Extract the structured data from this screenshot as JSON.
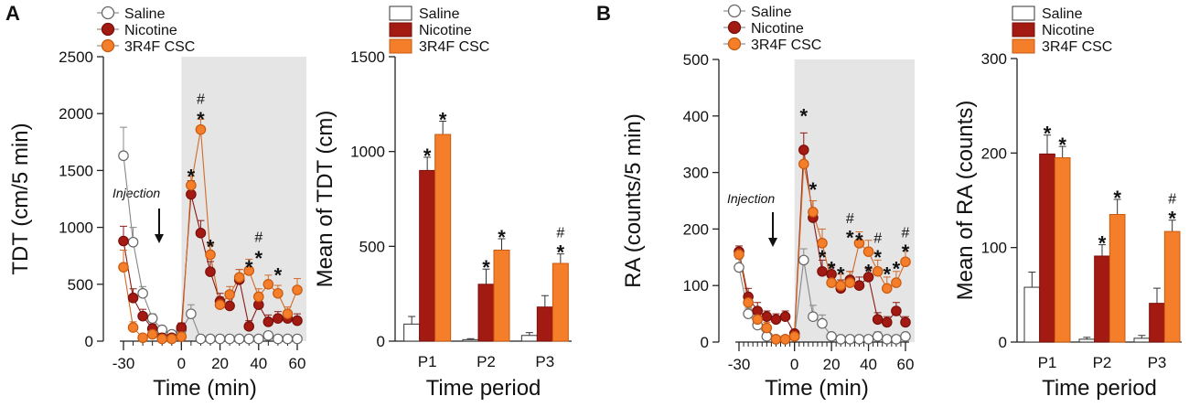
{
  "panels": [
    {
      "letter": "A"
    },
    {
      "letter": "B"
    }
  ],
  "colors": {
    "saline": "#ffffff",
    "nicotine": "#a31a12",
    "cscFill": "#f47e2a",
    "cscEdge": "#c85a10",
    "shade": "#e5e5e5"
  },
  "chart_data": [
    {
      "id": "A-time",
      "type": "line",
      "title": "",
      "xlabel": "Time (min)",
      "ylabel": "TDT (cm/5 min)",
      "xlim": [
        -35,
        65
      ],
      "ylim": [
        0,
        2500
      ],
      "xticks": [
        -30,
        0,
        20,
        40,
        60
      ],
      "yticks": [
        0,
        500,
        1000,
        1500,
        2000,
        2500
      ],
      "minor_xticks": [
        -30,
        -25,
        -20,
        -15,
        -10,
        -5,
        0,
        5,
        10,
        15,
        20,
        25,
        30,
        35,
        40,
        45,
        50,
        55,
        60
      ],
      "shaded_range": [
        0,
        62
      ],
      "annotation": "Injection",
      "legend": [
        "Saline",
        "Nicotine",
        "3R4F CSC"
      ],
      "x": [
        -30,
        -25,
        -20,
        -15,
        -10,
        -5,
        0,
        5,
        10,
        15,
        20,
        25,
        30,
        35,
        40,
        45,
        50,
        55,
        60
      ],
      "series": [
        {
          "name": "Saline",
          "values": [
            1630,
            870,
            420,
            200,
            100,
            60,
            100,
            240,
            20,
            20,
            20,
            20,
            20,
            20,
            20,
            50,
            20,
            20,
            20
          ],
          "errors": [
            250,
            130,
            60,
            40,
            30,
            20,
            30,
            80,
            15,
            15,
            15,
            15,
            15,
            15,
            15,
            30,
            15,
            15,
            15
          ]
        },
        {
          "name": "Nicotine",
          "values": [
            880,
            380,
            220,
            110,
            30,
            30,
            120,
            1290,
            950,
            610,
            350,
            310,
            540,
            130,
            320,
            170,
            200,
            200,
            180
          ],
          "errors": [
            130,
            80,
            60,
            40,
            20,
            20,
            40,
            120,
            110,
            90,
            70,
            70,
            90,
            50,
            80,
            60,
            60,
            60,
            60
          ]
        },
        {
          "name": "3R4F CSC",
          "values": [
            650,
            120,
            30,
            60,
            20,
            20,
            40,
            1370,
            1860,
            760,
            320,
            410,
            560,
            620,
            390,
            500,
            420,
            240,
            450
          ],
          "errors": [
            150,
            50,
            20,
            30,
            15,
            15,
            20,
            80,
            90,
            90,
            70,
            70,
            70,
            100,
            70,
            80,
            70,
            60,
            100
          ]
        }
      ],
      "sig_marks": [
        {
          "x": 5,
          "y": 1500,
          "symbol": "*"
        },
        {
          "x": 10,
          "y": 2000,
          "symbol": "*"
        },
        {
          "x": 10,
          "y": 2135,
          "symbol": "#"
        },
        {
          "x": 15,
          "y": 880,
          "symbol": "*"
        },
        {
          "x": 35,
          "y": 700,
          "symbol": "*"
        },
        {
          "x": 40,
          "y": 780,
          "symbol": "*"
        },
        {
          "x": 40,
          "y": 920,
          "symbol": "#"
        },
        {
          "x": 50,
          "y": 630,
          "symbol": "*"
        }
      ]
    },
    {
      "id": "A-mean",
      "type": "bar",
      "title": "",
      "xlabel": "Time period",
      "ylabel": "Mean of TDT (cm)",
      "ylim": [
        0,
        1500
      ],
      "yticks": [
        0,
        500,
        1000,
        1500
      ],
      "categories": [
        "P1",
        "P2",
        "P3"
      ],
      "legend": [
        "Saline",
        "Nicotine",
        "3R4F CSC"
      ],
      "series": [
        {
          "name": "Saline",
          "values": [
            90,
            8,
            30
          ],
          "errors": [
            40,
            5,
            15
          ]
        },
        {
          "name": "Nicotine",
          "values": [
            900,
            300,
            180
          ],
          "errors": [
            70,
            80,
            60
          ]
        },
        {
          "name": "3R4F CSC",
          "values": [
            1090,
            480,
            410
          ],
          "errors": [
            70,
            60,
            50
          ]
        }
      ],
      "sig_marks": [
        {
          "category": "P1",
          "series": "Nicotine",
          "symbols": [
            "*"
          ]
        },
        {
          "category": "P1",
          "series": "3R4F CSC",
          "symbols": [
            "*"
          ]
        },
        {
          "category": "P2",
          "series": "Nicotine",
          "symbols": [
            "*"
          ]
        },
        {
          "category": "P2",
          "series": "3R4F CSC",
          "symbols": [
            "*"
          ]
        },
        {
          "category": "P3",
          "series": "3R4F CSC",
          "symbols": [
            "*",
            "#"
          ]
        }
      ]
    },
    {
      "id": "B-time",
      "type": "line",
      "title": "",
      "xlabel": "Time (min)",
      "ylabel": "RA (counts/5 min)",
      "xlim": [
        -35,
        65
      ],
      "ylim": [
        0,
        500
      ],
      "xticks": [
        -30,
        0,
        20,
        40,
        60
      ],
      "yticks": [
        0,
        100,
        200,
        300,
        400,
        500
      ],
      "minor_xticks": [
        -30,
        -27.5,
        -25,
        -22.5,
        -20,
        -17.5,
        -15,
        -12.5,
        -10,
        -7.5,
        -5,
        -2.5,
        0,
        2.5,
        5,
        7.5,
        10,
        12.5,
        15,
        17.5,
        20,
        22.5,
        25,
        27.5,
        30,
        32.5,
        35,
        37.5,
        40,
        42.5,
        45,
        47.5,
        50,
        52.5,
        55,
        57.5,
        60
      ],
      "shaded_range": [
        0,
        62
      ],
      "annotation": "Injection",
      "legend": [
        "Saline",
        "Nicotine",
        "3R4F CSC"
      ],
      "x": [
        -30,
        -25,
        -20,
        -15,
        -10,
        -5,
        0,
        5,
        10,
        15,
        20,
        25,
        30,
        35,
        40,
        45,
        50,
        55,
        60
      ],
      "series": [
        {
          "name": "Saline",
          "values": [
            132,
            50,
            30,
            10,
            5,
            5,
            10,
            145,
            45,
            33,
            10,
            5,
            5,
            5,
            5,
            10,
            5,
            5,
            10
          ],
          "errors": [
            15,
            10,
            10,
            5,
            5,
            5,
            5,
            20,
            20,
            15,
            5,
            5,
            5,
            5,
            5,
            8,
            5,
            5,
            5
          ]
        },
        {
          "name": "Nicotine",
          "values": [
            160,
            80,
            55,
            45,
            40,
            45,
            15,
            340,
            220,
            125,
            120,
            95,
            110,
            100,
            115,
            40,
            35,
            55,
            35
          ],
          "errors": [
            10,
            15,
            15,
            10,
            10,
            10,
            5,
            30,
            30,
            20,
            15,
            15,
            15,
            15,
            15,
            12,
            10,
            15,
            10
          ]
        },
        {
          "name": "3R4F CSC",
          "values": [
            155,
            70,
            40,
            25,
            5,
            5,
            10,
            315,
            230,
            175,
            105,
            100,
            105,
            175,
            160,
            125,
            95,
            105,
            142
          ],
          "errors": [
            10,
            15,
            10,
            10,
            5,
            5,
            5,
            25,
            20,
            25,
            20,
            20,
            20,
            20,
            20,
            20,
            20,
            20,
            25
          ]
        }
      ],
      "sig_marks": [
        {
          "x": 5,
          "y": 410,
          "symbol": "*"
        },
        {
          "x": 10,
          "y": 280,
          "symbol": "*"
        },
        {
          "x": 15,
          "y": 160,
          "symbol": "*"
        },
        {
          "x": 20,
          "y": 140,
          "symbol": "*"
        },
        {
          "x": 25,
          "y": 130,
          "symbol": "*"
        },
        {
          "x": 30,
          "y": 195,
          "symbol": "*"
        },
        {
          "x": 30,
          "y": 220,
          "symbol": "#"
        },
        {
          "x": 35,
          "y": 190,
          "symbol": "*"
        },
        {
          "x": 40,
          "y": 135,
          "symbol": "*"
        },
        {
          "x": 45,
          "y": 160,
          "symbol": "*"
        },
        {
          "x": 45,
          "y": 185,
          "symbol": "#"
        },
        {
          "x": 50,
          "y": 130,
          "symbol": "*"
        },
        {
          "x": 55,
          "y": 140,
          "symbol": "*"
        },
        {
          "x": 60,
          "y": 170,
          "symbol": "*"
        },
        {
          "x": 60,
          "y": 195,
          "symbol": "#"
        }
      ]
    },
    {
      "id": "B-mean",
      "type": "bar",
      "title": "",
      "xlabel": "Time period",
      "ylabel": "Mean of RA (counts)",
      "ylim": [
        0,
        300
      ],
      "yticks": [
        0,
        100,
        200,
        300
      ],
      "categories": [
        "P1",
        "P2",
        "P3"
      ],
      "legend": [
        "Saline",
        "Nicotine",
        "3R4F CSC"
      ],
      "series": [
        {
          "name": "Saline",
          "values": [
            58,
            3,
            4
          ],
          "errors": [
            16,
            2,
            3
          ]
        },
        {
          "name": "Nicotine",
          "values": [
            199,
            91,
            41
          ],
          "errors": [
            20,
            12,
            16
          ]
        },
        {
          "name": "3R4F CSC",
          "values": [
            195,
            135,
            117
          ],
          "errors": [
            12,
            16,
            12
          ]
        }
      ],
      "sig_marks": [
        {
          "category": "P1",
          "series": "Nicotine",
          "symbols": [
            "*"
          ]
        },
        {
          "category": "P1",
          "series": "3R4F CSC",
          "symbols": [
            "*"
          ]
        },
        {
          "category": "P2",
          "series": "Nicotine",
          "symbols": [
            "*"
          ]
        },
        {
          "category": "P2",
          "series": "3R4F CSC",
          "symbols": [
            "*"
          ]
        },
        {
          "category": "P3",
          "series": "3R4F CSC",
          "symbols": [
            "*",
            "#"
          ]
        }
      ]
    }
  ]
}
